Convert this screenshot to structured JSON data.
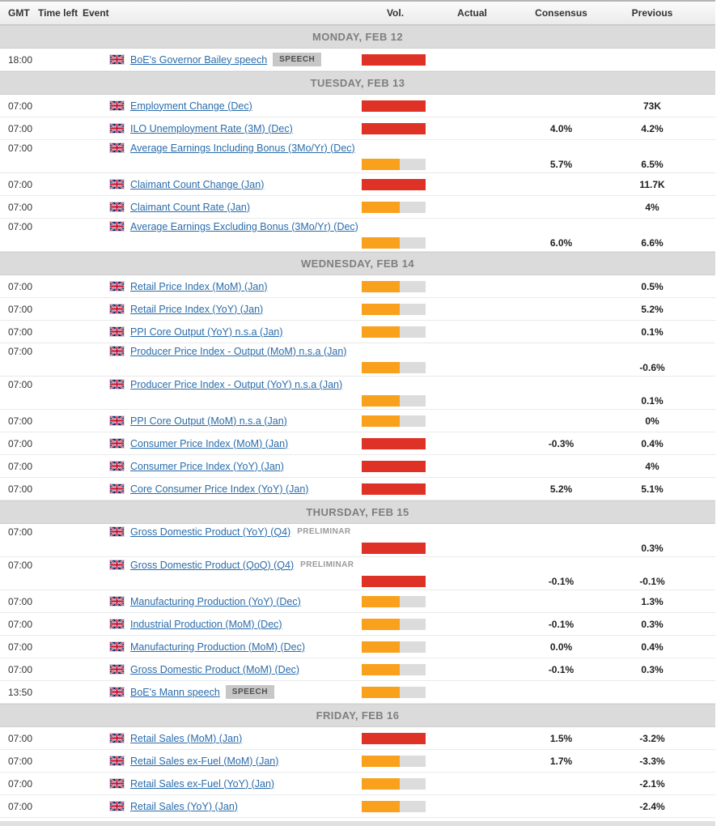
{
  "table": {
    "columns": [
      "GMT",
      "Time left",
      "Event",
      "Vol.",
      "Actual",
      "Consensus",
      "Previous"
    ]
  },
  "colors": {
    "volatility_high": "#df3226",
    "volatility_medium": "#f9a11c",
    "volatility_track": "#dcdcdc",
    "link_blue": "#2a6caa",
    "day_band_bg": "#dbdbdb"
  },
  "volatility_fill_percent": {
    "high": 100,
    "medium": 60
  },
  "days": [
    {
      "label": "MONDAY, FEB 12",
      "events": [
        {
          "time": "18:00",
          "flag": "GB",
          "title": "BoE's Governor Bailey speech",
          "badge": "SPEECH",
          "volatility": "high",
          "actual": "",
          "consensus": "",
          "previous": "",
          "tall": false
        }
      ]
    },
    {
      "label": "TUESDAY, FEB 13",
      "events": [
        {
          "time": "07:00",
          "flag": "GB",
          "title": "Employment Change (Dec)",
          "volatility": "high",
          "actual": "",
          "consensus": "",
          "previous": "73K",
          "tall": false
        },
        {
          "time": "07:00",
          "flag": "GB",
          "title": "ILO Unemployment Rate (3M) (Dec)",
          "volatility": "high",
          "actual": "",
          "consensus": "4.0%",
          "previous": "4.2%",
          "tall": false
        },
        {
          "time": "07:00",
          "flag": "GB",
          "title": "Average Earnings Including Bonus (3Mo/Yr) (Dec)",
          "volatility": "medium",
          "actual": "",
          "consensus": "5.7%",
          "previous": "6.5%",
          "tall": true
        },
        {
          "time": "07:00",
          "flag": "GB",
          "title": "Claimant Count Change (Jan)",
          "volatility": "high",
          "actual": "",
          "consensus": "",
          "previous": "11.7K",
          "tall": false
        },
        {
          "time": "07:00",
          "flag": "GB",
          "title": "Claimant Count Rate (Jan)",
          "volatility": "medium",
          "actual": "",
          "consensus": "",
          "previous": "4%",
          "tall": false
        },
        {
          "time": "07:00",
          "flag": "GB",
          "title": "Average Earnings Excluding Bonus (3Mo/Yr) (Dec)",
          "volatility": "medium",
          "actual": "",
          "consensus": "6.0%",
          "previous": "6.6%",
          "tall": true
        }
      ]
    },
    {
      "label": "WEDNESDAY, FEB 14",
      "events": [
        {
          "time": "07:00",
          "flag": "GB",
          "title": "Retail Price Index (MoM) (Jan)",
          "volatility": "medium",
          "actual": "",
          "consensus": "",
          "previous": "0.5%",
          "tall": false
        },
        {
          "time": "07:00",
          "flag": "GB",
          "title": "Retail Price Index (YoY) (Jan)",
          "volatility": "medium",
          "actual": "",
          "consensus": "",
          "previous": "5.2%",
          "tall": false
        },
        {
          "time": "07:00",
          "flag": "GB",
          "title": "PPI Core Output (YoY) n.s.a (Jan)",
          "volatility": "medium",
          "actual": "",
          "consensus": "",
          "previous": "0.1%",
          "tall": false
        },
        {
          "time": "07:00",
          "flag": "GB",
          "title": "Producer Price Index - Output (MoM) n.s.a (Jan)",
          "volatility": "medium",
          "actual": "",
          "consensus": "",
          "previous": "-0.6%",
          "tall": true
        },
        {
          "time": "07:00",
          "flag": "GB",
          "title": "Producer Price Index - Output (YoY) n.s.a (Jan)",
          "volatility": "medium",
          "actual": "",
          "consensus": "",
          "previous": "0.1%",
          "tall": true
        },
        {
          "time": "07:00",
          "flag": "GB",
          "title": "PPI Core Output (MoM) n.s.a (Jan)",
          "volatility": "medium",
          "actual": "",
          "consensus": "",
          "previous": "0%",
          "tall": false
        },
        {
          "time": "07:00",
          "flag": "GB",
          "title": "Consumer Price Index (MoM) (Jan)",
          "volatility": "high",
          "actual": "",
          "consensus": "-0.3%",
          "previous": "0.4%",
          "tall": false
        },
        {
          "time": "07:00",
          "flag": "GB",
          "title": "Consumer Price Index (YoY) (Jan)",
          "volatility": "high",
          "actual": "",
          "consensus": "",
          "previous": "4%",
          "tall": false
        },
        {
          "time": "07:00",
          "flag": "GB",
          "title": "Core Consumer Price Index (YoY) (Jan)",
          "volatility": "high",
          "actual": "",
          "consensus": "5.2%",
          "previous": "5.1%",
          "tall": false
        }
      ]
    },
    {
      "label": "THURSDAY, FEB 15",
      "events": [
        {
          "time": "07:00",
          "flag": "GB",
          "title": "Gross Domestic Product (YoY) (Q4)",
          "note": "PRELIMINAR",
          "volatility": "high",
          "actual": "",
          "consensus": "",
          "previous": "0.3%",
          "tall": true
        },
        {
          "time": "07:00",
          "flag": "GB",
          "title": "Gross Domestic Product (QoQ) (Q4)",
          "note": "PRELIMINAR",
          "volatility": "high",
          "actual": "",
          "consensus": "-0.1%",
          "previous": "-0.1%",
          "tall": true
        },
        {
          "time": "07:00",
          "flag": "GB",
          "title": "Manufacturing Production (YoY) (Dec)",
          "volatility": "medium",
          "actual": "",
          "consensus": "",
          "previous": "1.3%",
          "tall": false
        },
        {
          "time": "07:00",
          "flag": "GB",
          "title": "Industrial Production (MoM) (Dec)",
          "volatility": "medium",
          "actual": "",
          "consensus": "-0.1%",
          "previous": "0.3%",
          "tall": false
        },
        {
          "time": "07:00",
          "flag": "GB",
          "title": "Manufacturing Production (MoM) (Dec)",
          "volatility": "medium",
          "actual": "",
          "consensus": "0.0%",
          "previous": "0.4%",
          "tall": false
        },
        {
          "time": "07:00",
          "flag": "GB",
          "title": "Gross Domestic Product (MoM) (Dec)",
          "volatility": "medium",
          "actual": "",
          "consensus": "-0.1%",
          "previous": "0.3%",
          "tall": false
        },
        {
          "time": "13:50",
          "flag": "GB",
          "title": "BoE's Mann speech",
          "badge": "SPEECH",
          "volatility": "medium",
          "actual": "",
          "consensus": "",
          "previous": "",
          "tall": false
        }
      ]
    },
    {
      "label": "FRIDAY, FEB 16",
      "events": [
        {
          "time": "07:00",
          "flag": "GB",
          "title": "Retail Sales (MoM) (Jan)",
          "volatility": "high",
          "actual": "",
          "consensus": "1.5%",
          "previous": "-3.2%",
          "tall": false
        },
        {
          "time": "07:00",
          "flag": "GB",
          "title": "Retail Sales ex-Fuel (MoM) (Jan)",
          "volatility": "medium",
          "actual": "",
          "consensus": "1.7%",
          "previous": "-3.3%",
          "tall": false
        },
        {
          "time": "07:00",
          "flag": "GB",
          "title": "Retail Sales ex-Fuel (YoY) (Jan)",
          "volatility": "medium",
          "actual": "",
          "consensus": "",
          "previous": "-2.1%",
          "tall": false
        },
        {
          "time": "07:00",
          "flag": "GB",
          "title": "Retail Sales (YoY) (Jan)",
          "volatility": "medium",
          "actual": "",
          "consensus": "",
          "previous": "-2.4%",
          "tall": false
        }
      ]
    }
  ]
}
